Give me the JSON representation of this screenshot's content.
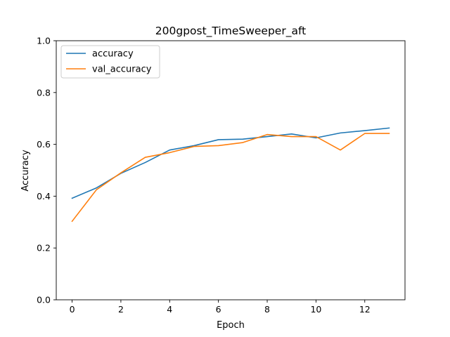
{
  "chart_data": {
    "type": "line",
    "title": "200gpost_TimeSweeper_aft",
    "xlabel": "Epoch",
    "ylabel": "Accuracy",
    "xlim": [
      -0.65,
      13.65
    ],
    "ylim": [
      0.0,
      1.0
    ],
    "xticks": [
      0,
      2,
      4,
      6,
      8,
      10,
      12
    ],
    "yticks": [
      0.0,
      0.2,
      0.4,
      0.6,
      0.8,
      1.0
    ],
    "xtick_labels": [
      "0",
      "2",
      "4",
      "6",
      "8",
      "10",
      "12"
    ],
    "ytick_labels": [
      "0.0",
      "0.2",
      "0.4",
      "0.6",
      "0.8",
      "1.0"
    ],
    "grid": false,
    "legend_position": "upper-left",
    "x": [
      0,
      1,
      2,
      3,
      4,
      5,
      6,
      7,
      8,
      9,
      10,
      11,
      12,
      13
    ],
    "series": [
      {
        "name": "accuracy",
        "color": "#1f77b4",
        "values": [
          0.392,
          0.432,
          0.488,
          0.53,
          0.578,
          0.595,
          0.618,
          0.62,
          0.63,
          0.64,
          0.625,
          0.644,
          0.653,
          0.663
        ]
      },
      {
        "name": "val_accuracy",
        "color": "#ff7f0e",
        "values": [
          0.303,
          0.425,
          0.49,
          0.55,
          0.568,
          0.592,
          0.595,
          0.607,
          0.638,
          0.63,
          0.63,
          0.578,
          0.642,
          0.642
        ]
      }
    ]
  }
}
